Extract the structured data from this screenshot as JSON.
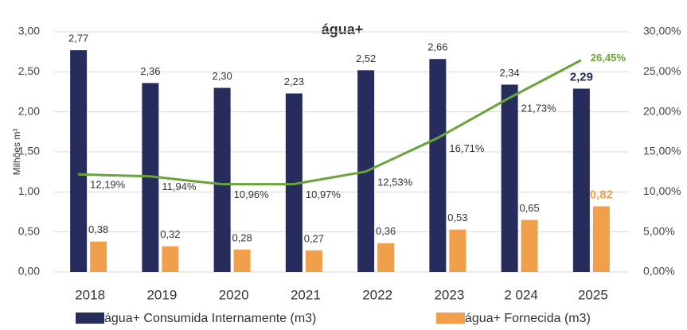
{
  "chart_data": {
    "type": "bar",
    "title": "água+",
    "y_label": "Milhões m³",
    "categories": [
      "2018",
      "2019",
      "2020",
      "2021",
      "2022",
      "2023",
      "2 024",
      "2025"
    ],
    "series": [
      {
        "name": "água+ Consumida Internamente (m3)",
        "type": "bar",
        "color": "#262c5c",
        "values": [
          2.77,
          2.36,
          2.3,
          2.23,
          2.52,
          2.66,
          2.34,
          2.29
        ],
        "value_labels": [
          "2,77",
          "2,36",
          "2,30",
          "2,23",
          "2,52",
          "2,66",
          "2,34",
          "2,29"
        ]
      },
      {
        "name": "água+ Fornecida (m3)",
        "type": "bar",
        "color": "#f0a04b",
        "values": [
          0.38,
          0.32,
          0.28,
          0.27,
          0.36,
          0.53,
          0.65,
          0.82
        ],
        "value_labels": [
          "0,38",
          "0,32",
          "0,28",
          "0,27",
          "0,36",
          "0,53",
          "0,65",
          "0,82"
        ]
      },
      {
        "type": "line",
        "axis": "y2",
        "color": "#6aa33c",
        "values": [
          12.19,
          11.94,
          10.96,
          10.97,
          12.53,
          16.71,
          21.73,
          26.45
        ],
        "value_labels": [
          "12,19%",
          "11,94%",
          "10,96%",
          "10,97%",
          "12,53%",
          "16,71%",
          "21,73%",
          "26,45%"
        ]
      }
    ],
    "ylim": [
      0,
      3
    ],
    "yticks": [
      {
        "value": 0,
        "label": "0,00"
      },
      {
        "value": 0.5,
        "label": "0,50"
      },
      {
        "value": 1,
        "label": "1,00"
      },
      {
        "value": 1.5,
        "label": "1,50"
      },
      {
        "value": 2,
        "label": "2,00"
      },
      {
        "value": 2.5,
        "label": "2,50"
      },
      {
        "value": 3,
        "label": "3,00"
      }
    ],
    "y2lim": [
      0,
      30
    ],
    "y2ticks": [
      {
        "value": 0,
        "label": "0,00%"
      },
      {
        "value": 5,
        "label": "5,00%"
      },
      {
        "value": 10,
        "label": "10,00%"
      },
      {
        "value": 15,
        "label": "15,00%"
      },
      {
        "value": 20,
        "label": "20,00%"
      },
      {
        "value": 25,
        "label": "25,00%"
      },
      {
        "value": 30,
        "label": "30,00%"
      }
    ],
    "grid": true
  }
}
